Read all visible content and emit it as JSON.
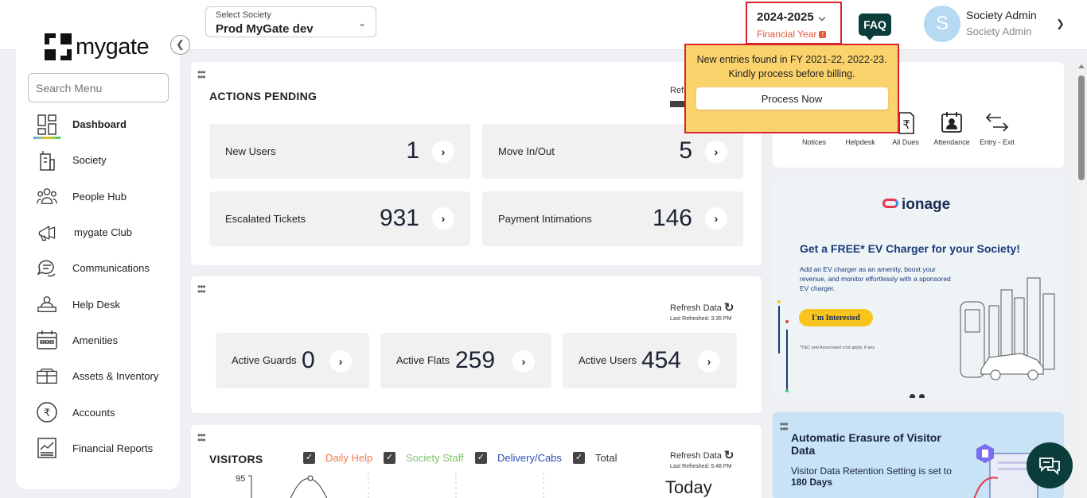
{
  "header": {
    "society_label": "Select Society",
    "society_value": "Prod MyGate dev",
    "fy_year": "2024-2025",
    "fy_label": "Financial Year",
    "faq": "FAQ",
    "avatar_letter": "S",
    "user_name": "Society Admin",
    "user_role": "Society Admin"
  },
  "popup": {
    "line1": "New entries found in FY 2021-22, 2022-23.",
    "line2": "Kindly process before billing.",
    "button": "Process Now"
  },
  "sidebar": {
    "logo": "mygate",
    "search_placeholder": "Search Menu",
    "items": [
      {
        "label": "Dashboard",
        "icon": "dashboard-icon"
      },
      {
        "label": "Society",
        "icon": "building-icon"
      },
      {
        "label": "People Hub",
        "icon": "people-icon"
      },
      {
        "label": "mygate Club",
        "icon": "megaphone-icon"
      },
      {
        "label": "Communications",
        "icon": "chat-icon"
      },
      {
        "label": "Help Desk",
        "icon": "helpdesk-icon"
      },
      {
        "label": "Amenities",
        "icon": "calendar-icon"
      },
      {
        "label": "Assets & Inventory",
        "icon": "box-icon"
      },
      {
        "label": "Accounts",
        "icon": "rupee-icon"
      },
      {
        "label": "Financial Reports",
        "icon": "report-icon"
      }
    ]
  },
  "actions": {
    "title": "ACTIONS PENDING",
    "refresh": "Refresh Data",
    "tiles": [
      {
        "label": "New Users",
        "value": "1"
      },
      {
        "label": "Move In/Out",
        "value": "5"
      },
      {
        "label": "Escalated Tickets",
        "value": "931"
      },
      {
        "label": "Payment Intimations",
        "value": "146"
      }
    ]
  },
  "stats": {
    "refresh": "Refresh Data",
    "last_refreshed": "Last Refreshed: 3:35 PM",
    "tiles": [
      {
        "label": "Active Guards",
        "value": "0"
      },
      {
        "label": "Active Flats",
        "value": "259"
      },
      {
        "label": "Active Users",
        "value": "454"
      }
    ]
  },
  "visitors": {
    "title": "VISITORS",
    "refresh": "Refresh Data",
    "last_refreshed": "Last Refreshed: 5:48 PM",
    "legend": [
      {
        "label": "Daily Help",
        "color": "#f07b4d"
      },
      {
        "label": "Society Staff",
        "color": "#7cc36a"
      },
      {
        "label": "Delivery/Cabs",
        "color": "#2a4db3"
      },
      {
        "label": "Total",
        "color": "#444444"
      }
    ],
    "y_max": "95",
    "today": "Today"
  },
  "quick_links": [
    {
      "label": "Notices",
      "icon": "notice-icon"
    },
    {
      "label": "Helpdesk",
      "icon": "helpdesk-icon"
    },
    {
      "label": "All Dues",
      "icon": "rupee-doc-icon"
    },
    {
      "label": "Attendance",
      "icon": "attendance-icon"
    },
    {
      "label": "Entry - Exit",
      "icon": "entry-exit-icon"
    }
  ],
  "banner": {
    "brand": "ionage",
    "headline": "Get a FREE* EV Charger for your Society!",
    "sub": "Add an EV charger as an amenity, boost your revenue, and monitor effortlessly with a sponsored EV charger.",
    "cta": "I'm Interested",
    "tnc": "*T&C and Associated cost apply, if any."
  },
  "erasure": {
    "title": "Automatic Erasure of Visitor Data",
    "text": "Visitor Data Retention Setting is set to ",
    "days": "180 Days"
  }
}
